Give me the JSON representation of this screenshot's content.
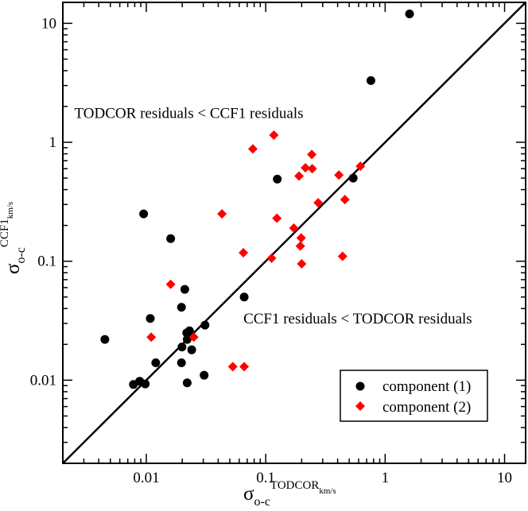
{
  "chart_data": {
    "type": "scatter",
    "xscale": "log",
    "yscale": "log",
    "xlim": [
      0.002,
      15
    ],
    "ylim": [
      0.002,
      15
    ],
    "x_ticks": [
      {
        "value": 0.01,
        "label": "0.01"
      },
      {
        "value": 0.1,
        "label": "0.1"
      },
      {
        "value": 1,
        "label": "1"
      },
      {
        "value": 10,
        "label": "10"
      }
    ],
    "y_ticks": [
      {
        "value": 0.01,
        "label": "0.01"
      },
      {
        "value": 0.1,
        "label": "0.1"
      },
      {
        "value": 1,
        "label": "1"
      },
      {
        "value": 10,
        "label": "10"
      }
    ],
    "xlabel": {
      "main": "σ",
      "sub": "o-c",
      "sup": "TODCOR",
      "supsub": "km/s"
    },
    "ylabel": {
      "main": "σ",
      "sub": "o-c",
      "sup": "CCF1",
      "supsub": "km/s"
    },
    "reference_line": {
      "label": "y = x",
      "from": 0.002,
      "to": 15
    },
    "annotations": [
      {
        "text": "TODCOR residuals < CCF1 residuals",
        "x": 0.0025,
        "y": 1.6
      },
      {
        "text": "CCF1 residuals < TODCOR residuals",
        "x": 0.065,
        "y": 0.03
      }
    ],
    "legend": {
      "position": "bottom-right"
    },
    "series": [
      {
        "name": "component (1)",
        "marker": "circle",
        "color": "#000000",
        "points": [
          {
            "x": 0.0045,
            "y": 0.022
          },
          {
            "x": 0.0078,
            "y": 0.0092
          },
          {
            "x": 0.0088,
            "y": 0.0098
          },
          {
            "x": 0.0095,
            "y": 0.25
          },
          {
            "x": 0.0098,
            "y": 0.0093
          },
          {
            "x": 0.0108,
            "y": 0.033
          },
          {
            "x": 0.012,
            "y": 0.014
          },
          {
            "x": 0.016,
            "y": 0.155
          },
          {
            "x": 0.0197,
            "y": 0.041
          },
          {
            "x": 0.0197,
            "y": 0.014
          },
          {
            "x": 0.0199,
            "y": 0.019
          },
          {
            "x": 0.021,
            "y": 0.058
          },
          {
            "x": 0.022,
            "y": 0.0095
          },
          {
            "x": 0.0218,
            "y": 0.025
          },
          {
            "x": 0.022,
            "y": 0.022
          },
          {
            "x": 0.023,
            "y": 0.026
          },
          {
            "x": 0.024,
            "y": 0.018
          },
          {
            "x": 0.031,
            "y": 0.029
          },
          {
            "x": 0.0305,
            "y": 0.011
          },
          {
            "x": 0.066,
            "y": 0.05
          },
          {
            "x": 0.125,
            "y": 0.49
          },
          {
            "x": 0.54,
            "y": 0.5
          },
          {
            "x": 0.76,
            "y": 3.3
          },
          {
            "x": 1.6,
            "y": 12.0
          }
        ]
      },
      {
        "name": "component (2)",
        "marker": "diamond",
        "color": "#ff0000",
        "points": [
          {
            "x": 0.011,
            "y": 0.023
          },
          {
            "x": 0.016,
            "y": 0.064
          },
          {
            "x": 0.025,
            "y": 0.023
          },
          {
            "x": 0.043,
            "y": 0.25
          },
          {
            "x": 0.053,
            "y": 0.013
          },
          {
            "x": 0.065,
            "y": 0.118
          },
          {
            "x": 0.066,
            "y": 0.013
          },
          {
            "x": 0.078,
            "y": 0.88
          },
          {
            "x": 0.112,
            "y": 0.106
          },
          {
            "x": 0.117,
            "y": 1.15
          },
          {
            "x": 0.124,
            "y": 0.23
          },
          {
            "x": 0.172,
            "y": 0.19
          },
          {
            "x": 0.19,
            "y": 0.52
          },
          {
            "x": 0.195,
            "y": 0.134
          },
          {
            "x": 0.198,
            "y": 0.157
          },
          {
            "x": 0.2,
            "y": 0.095
          },
          {
            "x": 0.215,
            "y": 0.61
          },
          {
            "x": 0.243,
            "y": 0.79
          },
          {
            "x": 0.245,
            "y": 0.6
          },
          {
            "x": 0.275,
            "y": 0.31
          },
          {
            "x": 0.41,
            "y": 0.53
          },
          {
            "x": 0.44,
            "y": 0.11
          },
          {
            "x": 0.46,
            "y": 0.33
          },
          {
            "x": 0.62,
            "y": 0.63
          }
        ]
      }
    ]
  }
}
